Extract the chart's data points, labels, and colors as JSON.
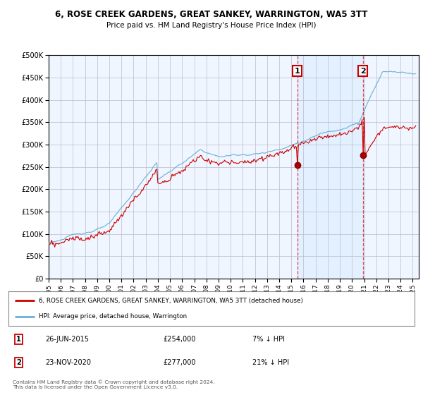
{
  "title": "6, ROSE CREEK GARDENS, GREAT SANKEY, WARRINGTON, WA5 3TT",
  "subtitle": "Price paid vs. HM Land Registry's House Price Index (HPI)",
  "ytick_values": [
    0,
    50000,
    100000,
    150000,
    200000,
    250000,
    300000,
    350000,
    400000,
    450000,
    500000
  ],
  "ylim": [
    0,
    500000
  ],
  "xlim_start": 1995.0,
  "xlim_end": 2025.5,
  "hpi_color": "#6baed6",
  "price_color": "#cc0000",
  "shade_color": "#ddeeff",
  "marker1_date": 2015.48,
  "marker2_date": 2020.9,
  "marker1_price": 254000,
  "marker2_price": 277000,
  "marker1_label": "26-JUN-2015",
  "marker2_label": "23-NOV-2020",
  "marker1_pct": "7% ↓ HPI",
  "marker2_pct": "21% ↓ HPI",
  "legend_line1": "6, ROSE CREEK GARDENS, GREAT SANKEY, WARRINGTON, WA5 3TT (detached house)",
  "legend_line2": "HPI: Average price, detached house, Warrington",
  "footnote": "Contains HM Land Registry data © Crown copyright and database right 2024.\nThis data is licensed under the Open Government Licence v3.0.",
  "xtick_years": [
    1995,
    1996,
    1997,
    1998,
    1999,
    2000,
    2001,
    2002,
    2003,
    2004,
    2005,
    2006,
    2007,
    2008,
    2009,
    2010,
    2011,
    2012,
    2013,
    2014,
    2015,
    2016,
    2017,
    2018,
    2019,
    2020,
    2021,
    2022,
    2023,
    2024,
    2025
  ],
  "background_color": "#ffffff",
  "grid_color": "#cccccc"
}
